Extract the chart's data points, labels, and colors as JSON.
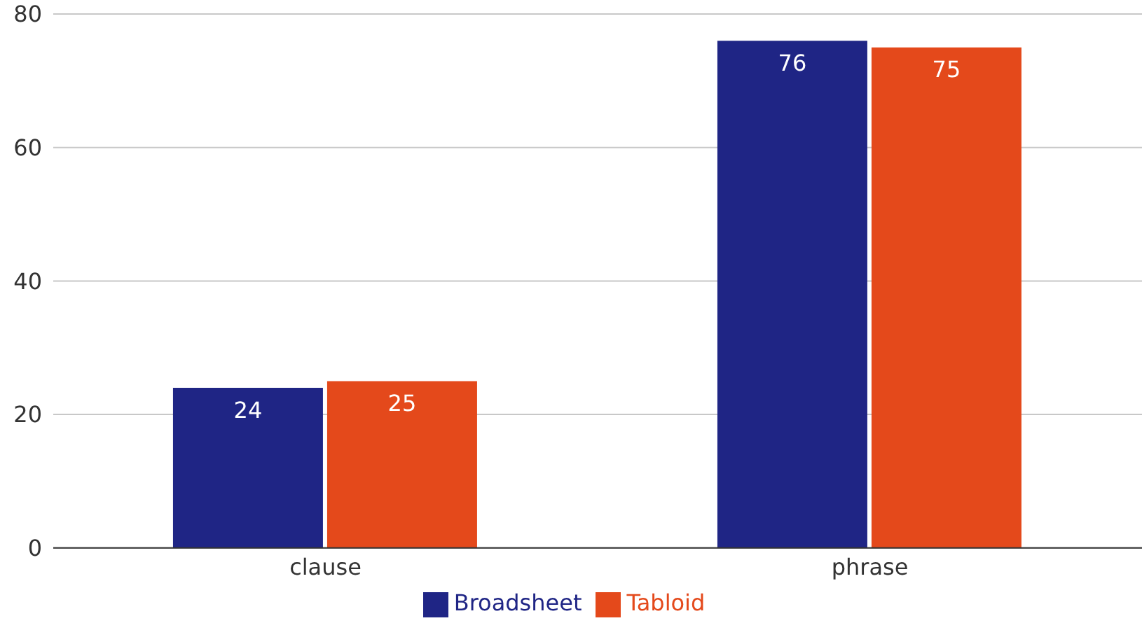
{
  "chart_data": {
    "type": "bar",
    "categories": [
      "clause",
      "phrase"
    ],
    "series": [
      {
        "name": "Broadsheet",
        "color": "#1f2585",
        "values": [
          24,
          76
        ]
      },
      {
        "name": "Tabloid",
        "color": "#e4491b",
        "values": [
          25,
          75
        ]
      }
    ],
    "ylim": [
      0,
      80
    ],
    "yticks": [
      0,
      20,
      40,
      60,
      80
    ],
    "grid": "y",
    "legend": "bottom",
    "data_labels": true
  }
}
